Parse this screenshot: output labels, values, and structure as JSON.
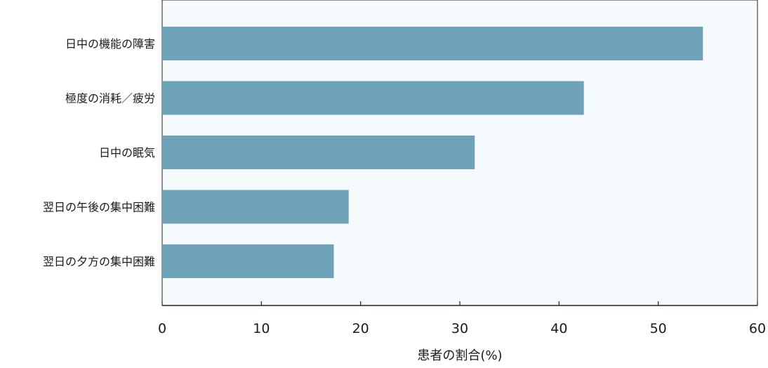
{
  "chart_data": {
    "type": "bar",
    "orientation": "horizontal",
    "categories": [
      "日中の機能の障害",
      "極度の消耗／疲労",
      "日中の眠気",
      "翌日の午後の集中困難",
      "翌日の夕方の集中困難"
    ],
    "values": [
      54.5,
      42.5,
      31.5,
      18.8,
      17.3
    ],
    "xlabel": "患者の割合(%)",
    "ylabel": "",
    "xlim": [
      0,
      60
    ],
    "xticks": [
      "0",
      "10",
      "20",
      "30",
      "40",
      "50",
      "60"
    ],
    "grid": false,
    "colors": {
      "bar": "#6ea3b9",
      "plot_bg": "#f5fafc",
      "axis": "#222222"
    }
  }
}
